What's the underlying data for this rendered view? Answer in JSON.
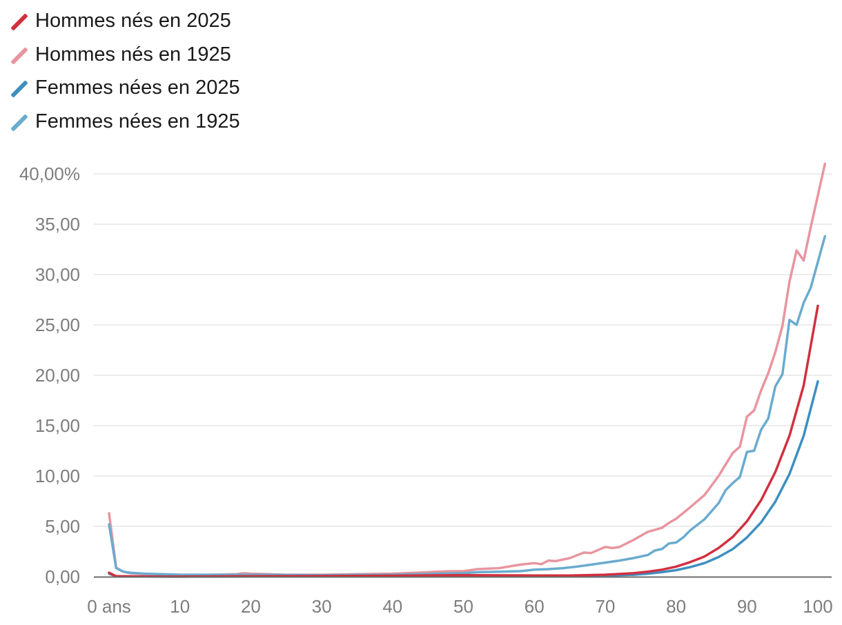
{
  "chart_data": {
    "type": "line",
    "title": "",
    "xlabel": "",
    "ylabel": "",
    "xlim": [
      0,
      100
    ],
    "ylim": [
      0,
      40
    ],
    "grid": true,
    "legend_position": "top-left",
    "x_ticks": [
      {
        "value": 0,
        "label": "0 ans"
      },
      {
        "value": 10,
        "label": "10"
      },
      {
        "value": 20,
        "label": "20"
      },
      {
        "value": 30,
        "label": "30"
      },
      {
        "value": 40,
        "label": "40"
      },
      {
        "value": 50,
        "label": "50"
      },
      {
        "value": 60,
        "label": "60"
      },
      {
        "value": 70,
        "label": "70"
      },
      {
        "value": 80,
        "label": "80"
      },
      {
        "value": 90,
        "label": "90"
      },
      {
        "value": 100,
        "label": "100"
      }
    ],
    "y_ticks": [
      {
        "value": 0,
        "label": "0,00"
      },
      {
        "value": 5,
        "label": "5,00"
      },
      {
        "value": 10,
        "label": "10,00"
      },
      {
        "value": 15,
        "label": "15,00"
      },
      {
        "value": 20,
        "label": "20,00"
      },
      {
        "value": 25,
        "label": "25,00"
      },
      {
        "value": 30,
        "label": "30,00"
      },
      {
        "value": 35,
        "label": "35,00"
      },
      {
        "value": 40,
        "label": "40,00%"
      }
    ],
    "series": [
      {
        "name": "Hommes nés en 2025",
        "color": "#d1303f",
        "points": [
          [
            0,
            0.4
          ],
          [
            1,
            0.05
          ],
          [
            5,
            0.02
          ],
          [
            10,
            0.01
          ],
          [
            20,
            0.05
          ],
          [
            30,
            0.07
          ],
          [
            40,
            0.1
          ],
          [
            50,
            0.15
          ],
          [
            60,
            0.12
          ],
          [
            65,
            0.12
          ],
          [
            70,
            0.2
          ],
          [
            74,
            0.35
          ],
          [
            76,
            0.5
          ],
          [
            78,
            0.7
          ],
          [
            80,
            1.0
          ],
          [
            82,
            1.45
          ],
          [
            84,
            2.0
          ],
          [
            86,
            2.85
          ],
          [
            88,
            3.95
          ],
          [
            90,
            5.5
          ],
          [
            92,
            7.6
          ],
          [
            94,
            10.4
          ],
          [
            96,
            14.0
          ],
          [
            98,
            19.0
          ],
          [
            100,
            26.9
          ]
        ]
      },
      {
        "name": "Hommes nés en 1925",
        "color": "#e8959f",
        "points": [
          [
            0,
            6.3
          ],
          [
            1,
            0.9
          ],
          [
            2,
            0.5
          ],
          [
            3,
            0.35
          ],
          [
            5,
            0.25
          ],
          [
            10,
            0.15
          ],
          [
            15,
            0.2
          ],
          [
            18,
            0.25
          ],
          [
            19,
            0.35
          ],
          [
            20,
            0.3
          ],
          [
            25,
            0.2
          ],
          [
            30,
            0.2
          ],
          [
            35,
            0.25
          ],
          [
            40,
            0.3
          ],
          [
            45,
            0.45
          ],
          [
            48,
            0.55
          ],
          [
            50,
            0.55
          ],
          [
            52,
            0.75
          ],
          [
            55,
            0.85
          ],
          [
            58,
            1.2
          ],
          [
            60,
            1.35
          ],
          [
            61,
            1.25
          ],
          [
            62,
            1.6
          ],
          [
            63,
            1.55
          ],
          [
            65,
            1.85
          ],
          [
            67,
            2.4
          ],
          [
            68,
            2.35
          ],
          [
            70,
            2.95
          ],
          [
            71,
            2.85
          ],
          [
            72,
            2.95
          ],
          [
            74,
            3.65
          ],
          [
            76,
            4.45
          ],
          [
            78,
            4.85
          ],
          [
            79,
            5.35
          ],
          [
            80,
            5.75
          ],
          [
            82,
            6.9
          ],
          [
            84,
            8.1
          ],
          [
            86,
            10.0
          ],
          [
            88,
            12.3
          ],
          [
            89,
            12.9
          ],
          [
            90,
            15.9
          ],
          [
            91,
            16.5
          ],
          [
            92,
            18.5
          ],
          [
            93,
            20.2
          ],
          [
            94,
            22.3
          ],
          [
            95,
            24.9
          ],
          [
            96,
            29.3
          ],
          [
            97,
            32.4
          ],
          [
            98,
            31.4
          ],
          [
            99,
            34.7
          ],
          [
            101,
            41.0
          ]
        ]
      },
      {
        "name": "Femmes nées en 2025",
        "color": "#3e8fc0",
        "points": [
          [
            0,
            0.3
          ],
          [
            1,
            0.04
          ],
          [
            5,
            0.02
          ],
          [
            10,
            0.01
          ],
          [
            20,
            0.02
          ],
          [
            30,
            0.04
          ],
          [
            40,
            0.06
          ],
          [
            50,
            0.08
          ],
          [
            60,
            0.08
          ],
          [
            70,
            0.12
          ],
          [
            74,
            0.2
          ],
          [
            76,
            0.3
          ],
          [
            78,
            0.45
          ],
          [
            80,
            0.65
          ],
          [
            82,
            0.95
          ],
          [
            84,
            1.35
          ],
          [
            86,
            1.95
          ],
          [
            88,
            2.75
          ],
          [
            90,
            3.9
          ],
          [
            92,
            5.4
          ],
          [
            94,
            7.45
          ],
          [
            96,
            10.2
          ],
          [
            98,
            14.0
          ],
          [
            100,
            19.4
          ]
        ]
      },
      {
        "name": "Femmes nées en 1925",
        "color": "#6aabcf",
        "points": [
          [
            0,
            5.2
          ],
          [
            1,
            0.85
          ],
          [
            2,
            0.5
          ],
          [
            3,
            0.4
          ],
          [
            5,
            0.3
          ],
          [
            10,
            0.2
          ],
          [
            20,
            0.2
          ],
          [
            30,
            0.15
          ],
          [
            40,
            0.2
          ],
          [
            50,
            0.35
          ],
          [
            52,
            0.45
          ],
          [
            55,
            0.5
          ],
          [
            58,
            0.55
          ],
          [
            60,
            0.7
          ],
          [
            62,
            0.75
          ],
          [
            64,
            0.85
          ],
          [
            66,
            1.0
          ],
          [
            68,
            1.2
          ],
          [
            70,
            1.4
          ],
          [
            72,
            1.6
          ],
          [
            74,
            1.85
          ],
          [
            76,
            2.15
          ],
          [
            77,
            2.6
          ],
          [
            78,
            2.75
          ],
          [
            79,
            3.3
          ],
          [
            80,
            3.4
          ],
          [
            81,
            3.9
          ],
          [
            82,
            4.6
          ],
          [
            84,
            5.7
          ],
          [
            86,
            7.3
          ],
          [
            87,
            8.6
          ],
          [
            88,
            9.3
          ],
          [
            89,
            9.9
          ],
          [
            90,
            12.4
          ],
          [
            91,
            12.5
          ],
          [
            92,
            14.6
          ],
          [
            93,
            15.7
          ],
          [
            94,
            18.9
          ],
          [
            95,
            20.1
          ],
          [
            96,
            25.5
          ],
          [
            97,
            25.0
          ],
          [
            98,
            27.2
          ],
          [
            99,
            28.7
          ],
          [
            101,
            33.8
          ]
        ]
      }
    ]
  }
}
